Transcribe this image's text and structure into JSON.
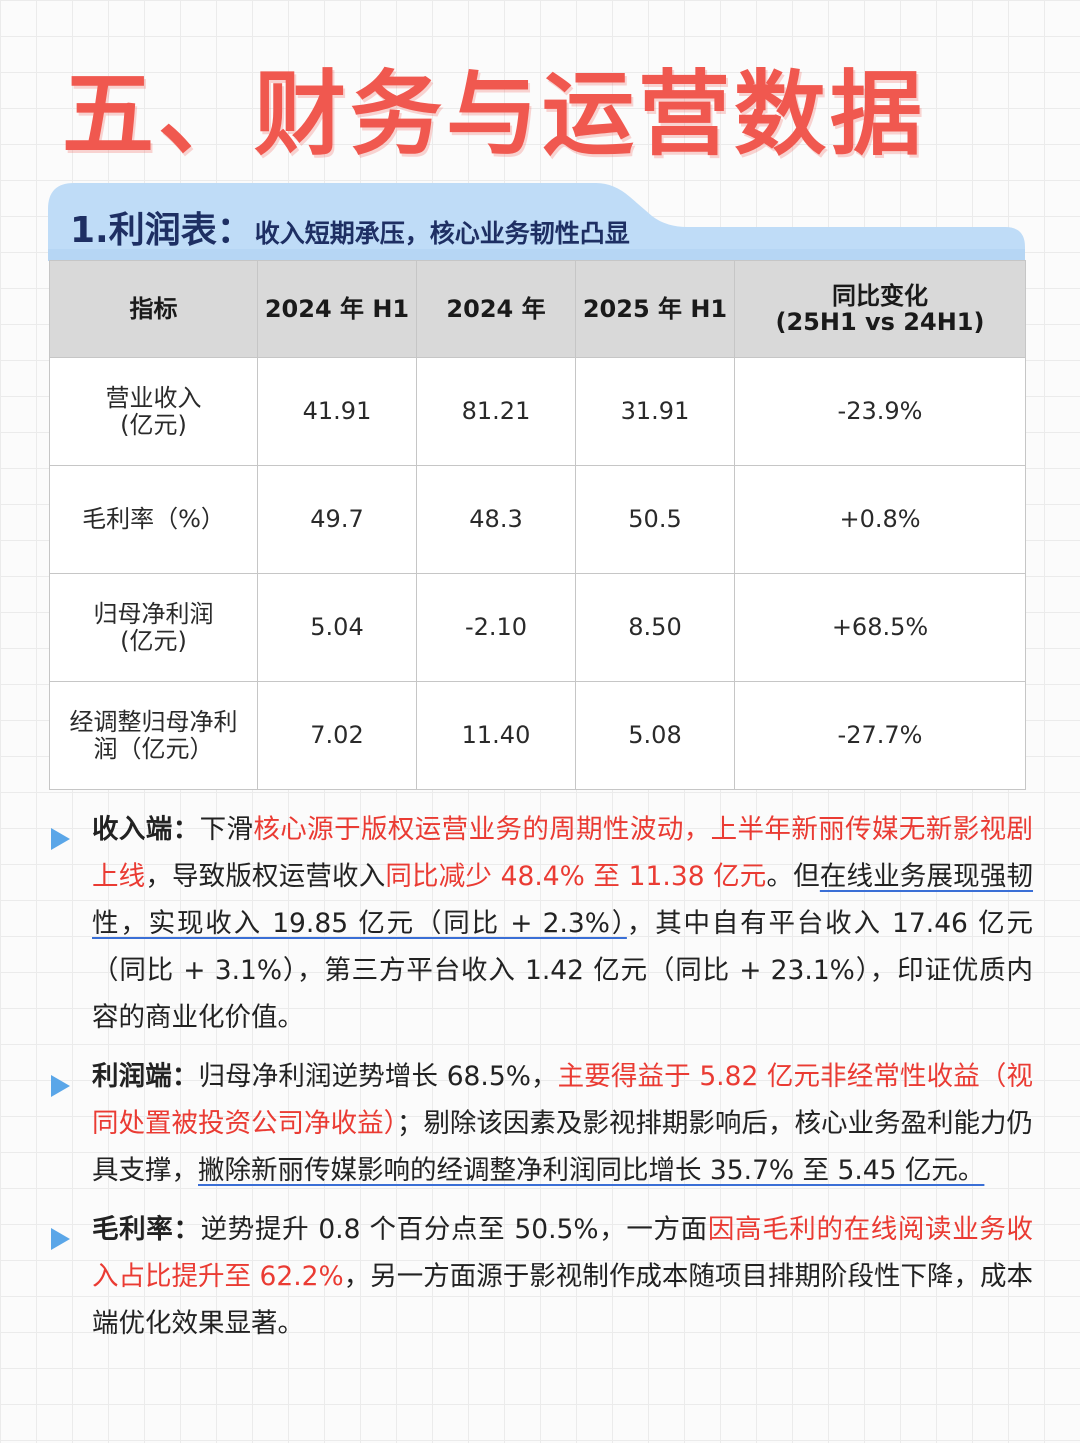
{
  "page_title": "五、财务与运营数据",
  "section": {
    "number_label": "1.利润表：",
    "subtitle": "收入短期承压，核心业务韧性凸显"
  },
  "colors": {
    "title": "#f0584f",
    "tab": "#bfdcf7",
    "accent_red": "#ea3b33",
    "bullet": "#5aa6e8"
  },
  "table": {
    "headers": [
      "指标",
      "2024 年 H1",
      "2024 年",
      "2025 年 H1"
    ],
    "header_change": {
      "line1": "同比变化",
      "line2": "(25H1 vs 24H1)"
    },
    "rows": [
      {
        "label1": "营业收入",
        "label2": "(亿元)",
        "h1_2024": "41.91",
        "fy_2024": "81.21",
        "h1_2025": "31.91",
        "change": "-23.9%"
      },
      {
        "label1": "毛利率（%）",
        "label2": "",
        "h1_2024": "49.7",
        "fy_2024": "48.3",
        "h1_2025": "50.5",
        "change": "+0.8%"
      },
      {
        "label1": "归母净利润",
        "label2": "(亿元)",
        "h1_2024": "5.04",
        "fy_2024": "-2.10",
        "h1_2025": "8.50",
        "change": "+68.5%"
      },
      {
        "label1": "经调整归母净利",
        "label2": "润（亿元）",
        "h1_2024": "7.02",
        "fy_2024": "11.40",
        "h1_2025": "5.08",
        "change": "-27.7%"
      }
    ]
  },
  "bullets": [
    {
      "lead": "收入端：",
      "t1": "下滑",
      "r1": "核心源于版权运营业务的周期性波动，上半年新丽传媒无新影视剧上线",
      "t2": "，导致版权运营收入",
      "r2": "同比减少 48.4% 至 11.38 亿元",
      "t3": "。但",
      "u1": "在线业务展现强韧性，实现收入 19.85 亿元（同比 + 2.3%）",
      "t4": "，其中自有平台收入 17.46 亿元（同比 + 3.1%），第三方平台收入 1.42 亿元（同比 + 23.1%），印证优质内容的商业化价值。"
    },
    {
      "lead": "利润端：",
      "t1": "归母净利润逆势增长 68.5%，",
      "r1": "主要得益于 5.82 亿元非经常性收益（视同处置被投资公司净收益）",
      "t2": "；剔除该因素及影视排期影响后，核心业务盈利能力仍具支撑，",
      "u1": "撇除新丽传媒影响的经调整净利润同比增长 35.7% 至 5.45 亿元。"
    },
    {
      "lead": "毛利率：",
      "t1": "逆势提升 0.8 个百分点至 50.5%，一方面",
      "r1": "因高毛利的在线阅读业务收入占比提升至 62.2%",
      "t2": "，另一方面源于影视制作成本随项目排期阶段性下降，成本端优化效果显著。"
    }
  ]
}
